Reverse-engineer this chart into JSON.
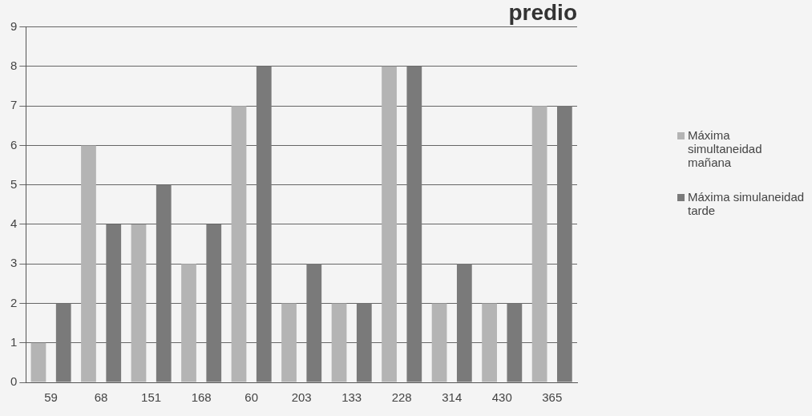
{
  "chart_data": {
    "type": "bar",
    "title": "predio",
    "categories": [
      "59",
      "68",
      "151",
      "168",
      "60",
      "203",
      "133",
      "228",
      "314",
      "430",
      "365"
    ],
    "series": [
      {
        "name": "Máxima simultaneidad mañana",
        "color": "#b4b4b4",
        "values": [
          1,
          6,
          4,
          3,
          7,
          2,
          2,
          8,
          2,
          2,
          7
        ]
      },
      {
        "name": "Máxima simulaneidad tarde",
        "color": "#7a7a7a",
        "values": [
          2,
          4,
          5,
          4,
          8,
          3,
          2,
          8,
          3,
          2,
          7
        ]
      }
    ],
    "ylim": [
      0,
      9
    ],
    "yticks": [
      0,
      1,
      2,
      3,
      4,
      5,
      6,
      7,
      8,
      9
    ],
    "grid": "y",
    "legend": "right"
  }
}
